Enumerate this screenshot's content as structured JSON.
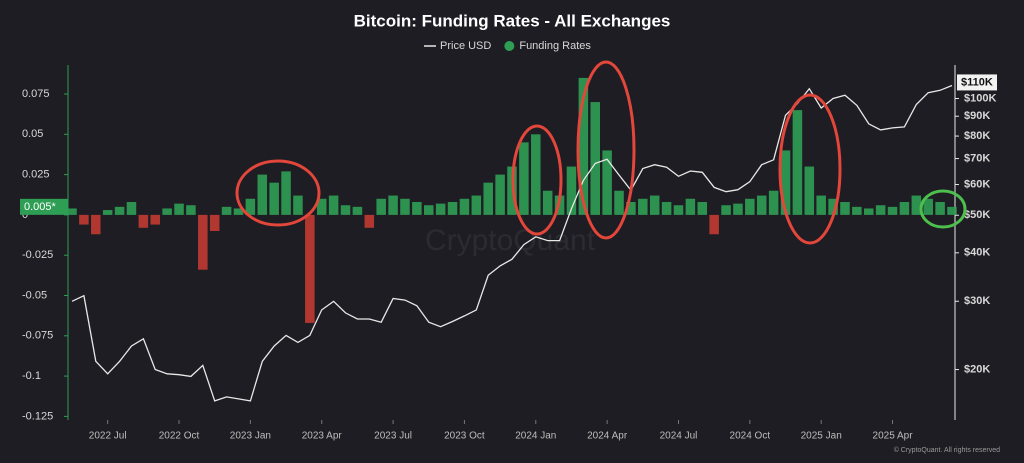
{
  "chart_data": {
    "type": "bar-line",
    "title": "Bitcoin: Funding Rates - All Exchanges",
    "watermark": "CryptoQuant",
    "footer": "© CryptoQuant. All rights reserved",
    "background": "#1e1d23",
    "categories": [
      null,
      null,
      null,
      "2022 Jul",
      null,
      null,
      null,
      null,
      null,
      "2022 Oct",
      null,
      null,
      null,
      null,
      null,
      "2023 Jan",
      null,
      null,
      null,
      null,
      null,
      "2023 Apr",
      null,
      null,
      null,
      null,
      null,
      "2023 Jul",
      null,
      null,
      null,
      null,
      null,
      "2023 Oct",
      null,
      null,
      null,
      null,
      null,
      "2024 Jan",
      null,
      null,
      null,
      null,
      null,
      "2024 Apr",
      null,
      null,
      null,
      null,
      null,
      "2024 Jul",
      null,
      null,
      null,
      null,
      null,
      "2024 Oct",
      null,
      null,
      null,
      null,
      null,
      "2025 Jan",
      null,
      null,
      null,
      null,
      null,
      "2025 Apr",
      null,
      null,
      null,
      null,
      null
    ],
    "series": [
      {
        "name": "Price USD",
        "type": "line",
        "axis": "y2",
        "color": "#e8e8e8",
        "values": [
          30000,
          31000,
          21000,
          19500,
          21000,
          23000,
          24000,
          20000,
          19500,
          19400,
          19200,
          20500,
          16600,
          17000,
          16800,
          16600,
          21000,
          23000,
          24500,
          23500,
          24500,
          28500,
          30000,
          28000,
          27000,
          27000,
          26500,
          30500,
          30200,
          29200,
          26500,
          25800,
          26600,
          27500,
          28500,
          35000,
          37000,
          38500,
          42000,
          44000,
          43000,
          43000,
          52000,
          61500,
          68000,
          69700,
          63500,
          58000,
          66000,
          67500,
          66500,
          63000,
          65000,
          64500,
          59000,
          57500,
          58200,
          61000,
          67500,
          69500,
          90500,
          97000,
          106000,
          94500,
          100000,
          102000,
          96000,
          86000,
          83000,
          84000,
          84500,
          96500,
          103500,
          105000,
          108000
        ]
      },
      {
        "name": "Funding Rates",
        "type": "bar",
        "color": "#2f9e55",
        "negative_color": "#c23b32",
        "values": [
          0.004,
          -0.006,
          -0.012,
          0.003,
          0.005,
          0.008,
          -0.008,
          -0.006,
          0.004,
          0.007,
          0.006,
          -0.034,
          -0.01,
          0.005,
          0.004,
          0.01,
          0.025,
          0.02,
          0.027,
          0.012,
          -0.067,
          0.01,
          0.012,
          0.006,
          0.005,
          -0.008,
          0.01,
          0.012,
          0.01,
          0.008,
          0.006,
          0.007,
          0.008,
          0.01,
          0.012,
          0.02,
          0.025,
          0.03,
          0.045,
          0.05,
          0.015,
          0.012,
          0.03,
          0.085,
          0.07,
          0.04,
          0.015,
          0.008,
          0.01,
          0.012,
          0.008,
          0.006,
          0.01,
          0.008,
          -0.012,
          0.006,
          0.007,
          0.01,
          0.012,
          0.015,
          0.04,
          0.065,
          0.03,
          0.012,
          0.01,
          0.008,
          0.005,
          0.004,
          0.006,
          0.005,
          0.008,
          0.012,
          0.01,
          0.008,
          0.005
        ]
      }
    ],
    "ylim": [
      -0.126,
      0.093
    ],
    "yticks": [
      0.075,
      0.05,
      0.025,
      0,
      -0.025,
      -0.05,
      -0.075,
      -0.1,
      -0.125
    ],
    "y2scale": "log",
    "y2lim": [
      15000,
      122000
    ],
    "y2ticks": [
      {
        "value": 20000,
        "label": "$20K"
      },
      {
        "value": 30000,
        "label": "$30K"
      },
      {
        "value": 40000,
        "label": "$40K"
      },
      {
        "value": 50000,
        "label": "$50K"
      },
      {
        "value": 60000,
        "label": "$60K"
      },
      {
        "value": 70000,
        "label": "$70K"
      },
      {
        "value": 80000,
        "label": "$80K"
      },
      {
        "value": 90000,
        "label": "$90K"
      },
      {
        "value": 100000,
        "label": "$100K"
      }
    ],
    "funding_marker": {
      "value": 0.005,
      "label": "0.005*"
    },
    "price_marker": {
      "value": 110000,
      "label": "$110K"
    }
  }
}
